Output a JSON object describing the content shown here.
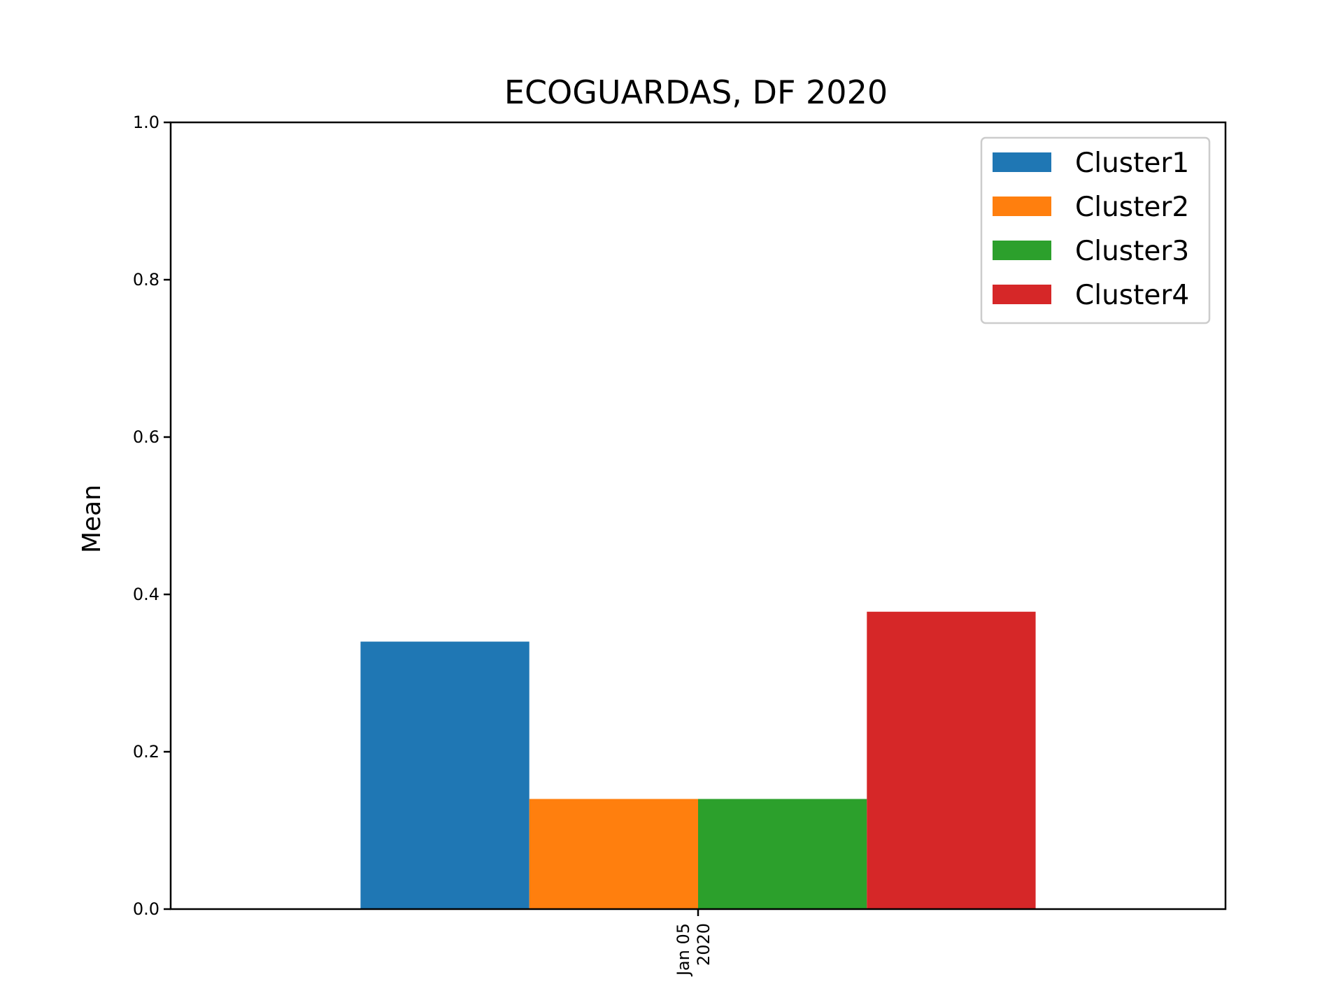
{
  "chart_data": {
    "type": "bar",
    "title": "ECOGUARDAS, DF 2020",
    "xlabel": "",
    "ylabel": "Mean",
    "categories": [
      "Jan 05\n2020"
    ],
    "ylim": [
      0,
      1.0
    ],
    "yticks": [
      "0.0",
      "0.2",
      "0.4",
      "0.6",
      "0.8",
      "1.0"
    ],
    "grid": false,
    "legend_position": "top-right",
    "series": [
      {
        "name": "Cluster1",
        "color": "#1f77b4",
        "values": [
          0.34
        ]
      },
      {
        "name": "Cluster2",
        "color": "#ff7f0e",
        "values": [
          0.14
        ]
      },
      {
        "name": "Cluster3",
        "color": "#2ca02c",
        "values": [
          0.14
        ]
      },
      {
        "name": "Cluster4",
        "color": "#d62728",
        "values": [
          0.378
        ]
      }
    ]
  }
}
